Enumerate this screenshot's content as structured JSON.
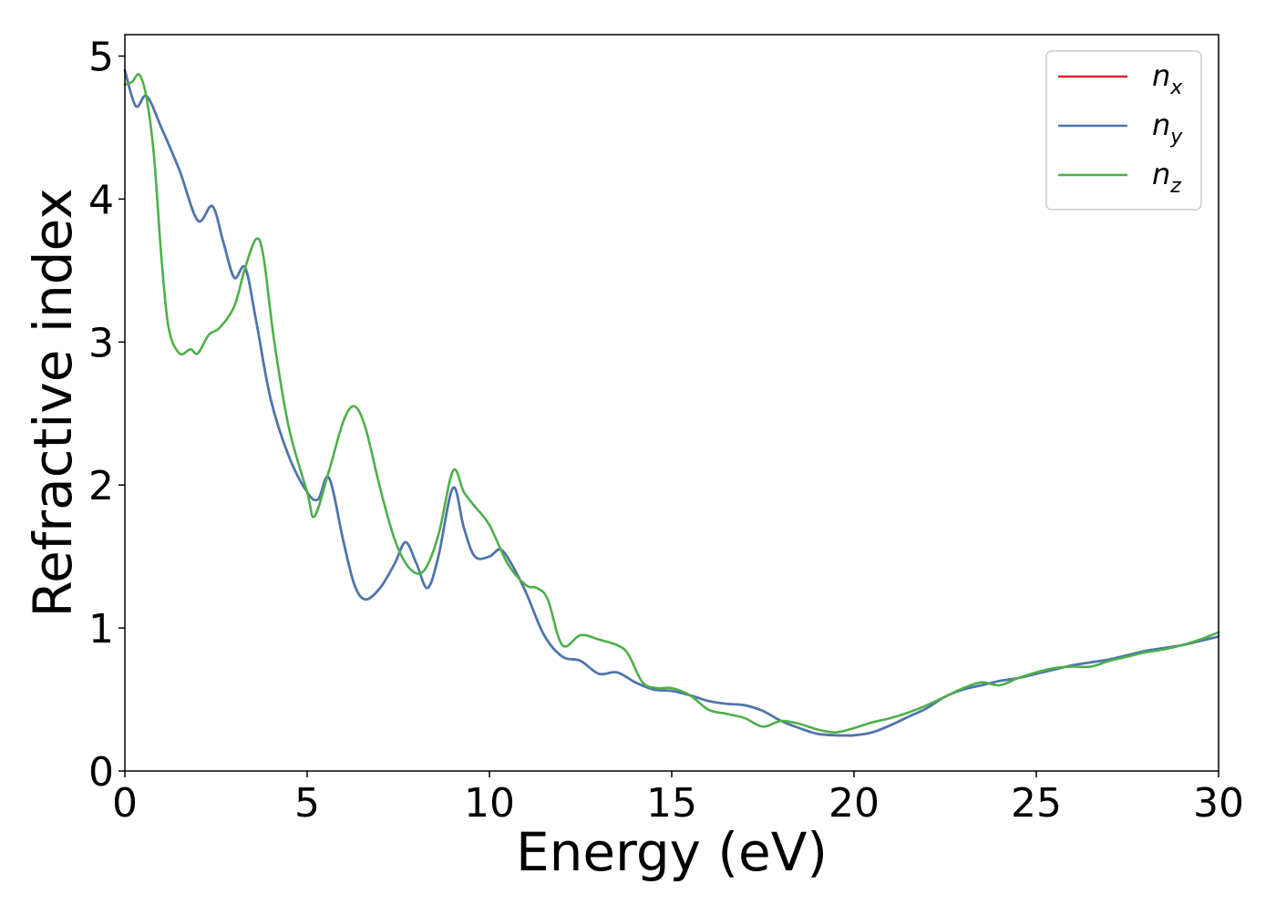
{
  "chart_data": {
    "type": "line",
    "title": "",
    "xlabel": "Energy (eV)",
    "ylabel": "Refractive index",
    "xlim": [
      0,
      30
    ],
    "ylim": [
      0,
      5.15
    ],
    "xticks": [
      0,
      5,
      10,
      15,
      20,
      25,
      30
    ],
    "yticks": [
      0,
      1,
      2,
      3,
      4,
      5
    ],
    "grid": false,
    "legend_position": "top-right",
    "series": [
      {
        "name": "n_x",
        "label_base": "n",
        "label_sub": "x",
        "color": "#d62728",
        "x": [
          0,
          0.3,
          0.6,
          1.0,
          1.5,
          2.0,
          2.4,
          2.7,
          3.0,
          3.3,
          3.6,
          4.0,
          4.5,
          5.0,
          5.3,
          5.6,
          6.0,
          6.3,
          6.6,
          7.0,
          7.4,
          7.7,
          8.0,
          8.3,
          8.6,
          9.0,
          9.3,
          9.6,
          10.0,
          10.3,
          10.6,
          11.0,
          11.5,
          12.0,
          12.5,
          13.0,
          13.5,
          14.0,
          14.5,
          15.0,
          15.5,
          16.0,
          16.5,
          17.0,
          17.5,
          18.0,
          18.5,
          19.0,
          19.5,
          20.0,
          20.5,
          21.0,
          21.5,
          22.0,
          22.5,
          23.0,
          23.5,
          24.0,
          24.5,
          25.0,
          25.5,
          26.0,
          26.5,
          27.0,
          27.5,
          28.0,
          28.5,
          29.0,
          29.5,
          30.0
        ],
        "y": [
          4.9,
          4.65,
          4.72,
          4.5,
          4.2,
          3.85,
          3.95,
          3.7,
          3.45,
          3.52,
          3.15,
          2.6,
          2.2,
          1.95,
          1.9,
          2.05,
          1.6,
          1.3,
          1.2,
          1.28,
          1.45,
          1.6,
          1.45,
          1.28,
          1.5,
          1.98,
          1.7,
          1.5,
          1.5,
          1.55,
          1.45,
          1.25,
          0.95,
          0.8,
          0.77,
          0.68,
          0.69,
          0.62,
          0.57,
          0.56,
          0.53,
          0.49,
          0.47,
          0.46,
          0.42,
          0.35,
          0.3,
          0.26,
          0.25,
          0.25,
          0.27,
          0.32,
          0.38,
          0.44,
          0.52,
          0.57,
          0.6,
          0.63,
          0.65,
          0.68,
          0.71,
          0.74,
          0.76,
          0.78,
          0.81,
          0.84,
          0.86,
          0.88,
          0.91,
          0.94
        ]
      },
      {
        "name": "n_y",
        "label_base": "n",
        "label_sub": "y",
        "color": "#4878b0",
        "x": [
          0,
          0.3,
          0.6,
          1.0,
          1.5,
          2.0,
          2.4,
          2.7,
          3.0,
          3.3,
          3.6,
          4.0,
          4.5,
          5.0,
          5.3,
          5.6,
          6.0,
          6.3,
          6.6,
          7.0,
          7.4,
          7.7,
          8.0,
          8.3,
          8.6,
          9.0,
          9.3,
          9.6,
          10.0,
          10.3,
          10.6,
          11.0,
          11.5,
          12.0,
          12.5,
          13.0,
          13.5,
          14.0,
          14.5,
          15.0,
          15.5,
          16.0,
          16.5,
          17.0,
          17.5,
          18.0,
          18.5,
          19.0,
          19.5,
          20.0,
          20.5,
          21.0,
          21.5,
          22.0,
          22.5,
          23.0,
          23.5,
          24.0,
          24.5,
          25.0,
          25.5,
          26.0,
          26.5,
          27.0,
          27.5,
          28.0,
          28.5,
          29.0,
          29.5,
          30.0
        ],
        "y": [
          4.9,
          4.65,
          4.72,
          4.5,
          4.2,
          3.85,
          3.95,
          3.7,
          3.45,
          3.52,
          3.15,
          2.6,
          2.2,
          1.95,
          1.9,
          2.05,
          1.6,
          1.3,
          1.2,
          1.28,
          1.45,
          1.6,
          1.45,
          1.28,
          1.5,
          1.98,
          1.7,
          1.5,
          1.5,
          1.55,
          1.45,
          1.25,
          0.95,
          0.8,
          0.77,
          0.68,
          0.69,
          0.62,
          0.57,
          0.56,
          0.53,
          0.49,
          0.47,
          0.46,
          0.42,
          0.35,
          0.3,
          0.26,
          0.25,
          0.25,
          0.27,
          0.32,
          0.38,
          0.44,
          0.52,
          0.57,
          0.6,
          0.63,
          0.65,
          0.68,
          0.71,
          0.74,
          0.76,
          0.78,
          0.81,
          0.84,
          0.86,
          0.88,
          0.91,
          0.94
        ]
      },
      {
        "name": "n_z",
        "label_base": "n",
        "label_sub": "z",
        "color": "#4daf4a",
        "x": [
          0,
          0.2,
          0.4,
          0.6,
          0.8,
          1.0,
          1.2,
          1.5,
          1.8,
          2.0,
          2.3,
          2.6,
          3.0,
          3.3,
          3.6,
          3.8,
          4.1,
          4.5,
          5.0,
          5.2,
          5.6,
          6.0,
          6.3,
          6.6,
          7.0,
          7.4,
          7.8,
          8.2,
          8.6,
          9.0,
          9.3,
          9.6,
          10.0,
          10.5,
          11.0,
          11.3,
          11.6,
          12.0,
          12.5,
          13.0,
          13.5,
          13.8,
          14.2,
          14.6,
          15.0,
          15.5,
          16.0,
          16.5,
          17.0,
          17.5,
          18.0,
          18.5,
          19.0,
          19.5,
          20.0,
          20.5,
          21.0,
          21.5,
          22.0,
          22.5,
          23.0,
          23.5,
          24.0,
          24.5,
          25.0,
          25.5,
          26.0,
          26.5,
          27.0,
          27.5,
          28.0,
          28.5,
          29.0,
          29.5,
          30.0
        ],
        "y": [
          4.8,
          4.82,
          4.87,
          4.7,
          4.3,
          3.6,
          3.1,
          2.92,
          2.95,
          2.92,
          3.05,
          3.1,
          3.25,
          3.52,
          3.72,
          3.6,
          3.0,
          2.4,
          1.95,
          1.78,
          2.1,
          2.45,
          2.55,
          2.4,
          1.98,
          1.62,
          1.42,
          1.4,
          1.65,
          2.1,
          1.95,
          1.85,
          1.72,
          1.45,
          1.3,
          1.28,
          1.2,
          0.88,
          0.95,
          0.92,
          0.88,
          0.82,
          0.62,
          0.58,
          0.58,
          0.53,
          0.43,
          0.4,
          0.37,
          0.31,
          0.35,
          0.33,
          0.29,
          0.27,
          0.3,
          0.34,
          0.37,
          0.41,
          0.46,
          0.52,
          0.58,
          0.62,
          0.6,
          0.65,
          0.69,
          0.72,
          0.73,
          0.73,
          0.77,
          0.8,
          0.83,
          0.85,
          0.88,
          0.92,
          0.97
        ]
      }
    ]
  }
}
